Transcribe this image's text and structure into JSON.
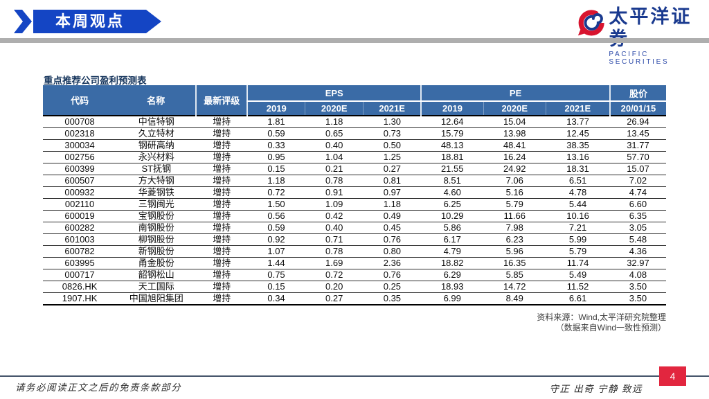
{
  "banner": {
    "title": "本周观点"
  },
  "logo": {
    "name_cn": "太平洋证券",
    "name_en": "PACIFIC SECURITIES"
  },
  "table": {
    "title": "重点推荐公司盈利预测表",
    "headers": {
      "code": "代码",
      "name": "名称",
      "rating": "最新评级",
      "eps": "EPS",
      "pe": "PE",
      "price": "股价"
    },
    "years": [
      "2019",
      "2020E",
      "2021E"
    ],
    "price_date": "20/01/15",
    "rows": [
      [
        "000708",
        "中信特钢",
        "增持",
        "1.81",
        "1.18",
        "1.30",
        "12.64",
        "15.04",
        "13.77",
        "26.94"
      ],
      [
        "002318",
        "久立特材",
        "增持",
        "0.59",
        "0.65",
        "0.73",
        "15.79",
        "13.98",
        "12.45",
        "13.45"
      ],
      [
        "300034",
        "钢研高纳",
        "增持",
        "0.33",
        "0.40",
        "0.50",
        "48.13",
        "48.41",
        "38.35",
        "31.77"
      ],
      [
        "002756",
        "永兴材料",
        "增持",
        "0.95",
        "1.04",
        "1.25",
        "18.81",
        "16.24",
        "13.16",
        "57.70"
      ],
      [
        "600399",
        "ST抚钢",
        "增持",
        "0.15",
        "0.21",
        "0.27",
        "21.55",
        "24.92",
        "18.31",
        "15.07"
      ],
      [
        "600507",
        "方大特钢",
        "增持",
        "1.18",
        "0.78",
        "0.81",
        "8.51",
        "7.06",
        "6.51",
        "7.02"
      ],
      [
        "000932",
        "华菱钢铁",
        "增持",
        "0.72",
        "0.91",
        "0.97",
        "4.60",
        "5.16",
        "4.78",
        "4.74"
      ],
      [
        "002110",
        "三钢闽光",
        "增持",
        "1.50",
        "1.09",
        "1.18",
        "6.25",
        "5.79",
        "5.44",
        "6.60"
      ],
      [
        "600019",
        "宝钢股份",
        "增持",
        "0.56",
        "0.42",
        "0.49",
        "10.29",
        "11.66",
        "10.16",
        "6.35"
      ],
      [
        "600282",
        "南钢股份",
        "增持",
        "0.59",
        "0.40",
        "0.45",
        "5.86",
        "7.98",
        "7.21",
        "3.05"
      ],
      [
        "601003",
        "柳钢股份",
        "增持",
        "0.92",
        "0.71",
        "0.76",
        "6.17",
        "6.23",
        "5.99",
        "5.48"
      ],
      [
        "600782",
        "新钢股份",
        "增持",
        "1.07",
        "0.78",
        "0.80",
        "4.79",
        "5.96",
        "5.79",
        "4.36"
      ],
      [
        "603995",
        "甬金股份",
        "增持",
        "1.44",
        "1.69",
        "2.36",
        "18.82",
        "16.35",
        "11.74",
        "32.97"
      ],
      [
        "000717",
        "韶钢松山",
        "增持",
        "0.75",
        "0.72",
        "0.76",
        "6.29",
        "5.85",
        "5.49",
        "4.08"
      ],
      [
        "0826.HK",
        "天工国际",
        "增持",
        "0.15",
        "0.20",
        "0.25",
        "18.93",
        "14.72",
        "11.52",
        "3.50"
      ],
      [
        "1907.HK",
        "中国旭阳集团",
        "增持",
        "0.34",
        "0.27",
        "0.35",
        "6.99",
        "8.49",
        "6.61",
        "3.50"
      ]
    ],
    "source_line1": "资料来源：Wind,太平洋研究院整理",
    "source_line2": "（数据来自Wind一致性预测）"
  },
  "footer": {
    "disclaimer": "请务必阅读正文之后的免责条款部分",
    "motto": "守正  出奇  宁静  致远",
    "page_number": "4"
  },
  "colors": {
    "banner_blue": "#1445C4",
    "table_header_blue": "#3A6BA6",
    "title_navy": "#17365D",
    "logo_navy": "#1A3A8F",
    "logo_red": "#D8142F",
    "page_badge_red": "#E2263F",
    "footer_line": "#44546A",
    "divider_gray": "#AEAEAE"
  }
}
